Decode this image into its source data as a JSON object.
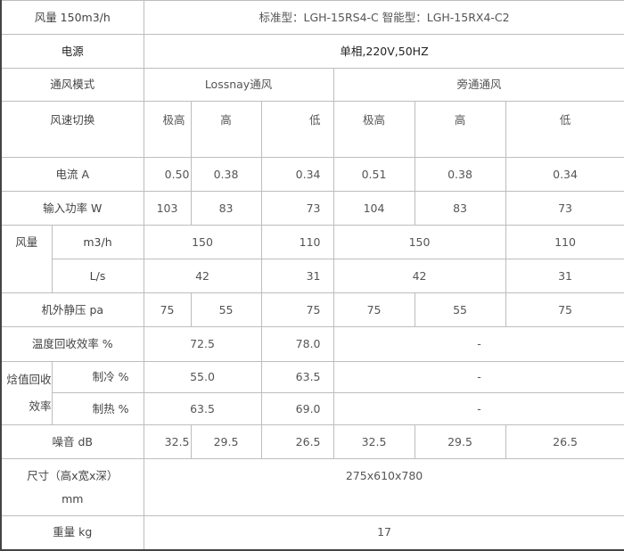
{
  "model_label": "风量 150m3/h",
  "model_value": "标准型：LGH-15RS4-C 智能型：LGH-15RX4-C2",
  "power_label": "电源",
  "power_value": "单相,220V,50HZ",
  "mode_label": "通风模式",
  "mode_lossnay": "Lossnay通风",
  "mode_bypass": "旁通通风",
  "speed_label": "风速切换",
  "speeds": [
    "极高",
    "高",
    "低",
    "极高",
    "高",
    "低"
  ],
  "current_label": "电流 A",
  "current": [
    "0.50",
    "0.38",
    "0.34",
    "0.51",
    "0.38",
    "0.34"
  ],
  "power_in_label": "输入功率 W",
  "power_in": [
    "103",
    "83",
    "73",
    "104",
    "83",
    "73"
  ],
  "airflow_label": "风量",
  "airflow_m3h_label": "m3/h",
  "airflow_m3h": [
    "150",
    "110",
    "150",
    "110"
  ],
  "airflow_ls_label": "L/s",
  "airflow_ls": [
    "42",
    "31",
    "42",
    "31"
  ],
  "static_label": "机外静压 pa",
  "static": [
    "75",
    "55",
    "75",
    "75",
    "55",
    "75"
  ],
  "temp_eff_label": "温度回收效率 %",
  "temp_eff": [
    "72.5",
    "78.0",
    "-"
  ],
  "enthalpy_label": "焓值回收效率",
  "cool_label": "制冷 %",
  "cool": [
    "55.0",
    "63.5",
    "-"
  ],
  "heat_label": "制热 %",
  "heat": [
    "63.5",
    "69.0",
    "-"
  ],
  "noise_label": "噪音 dB",
  "noise": [
    "32.5",
    "29.5",
    "26.5",
    "32.5",
    "29.5",
    "26.5"
  ],
  "size_label": "尺寸（高x宽x深）mm",
  "size_value": "275x610x780",
  "weight_label": "重量 kg",
  "weight_value": "17"
}
